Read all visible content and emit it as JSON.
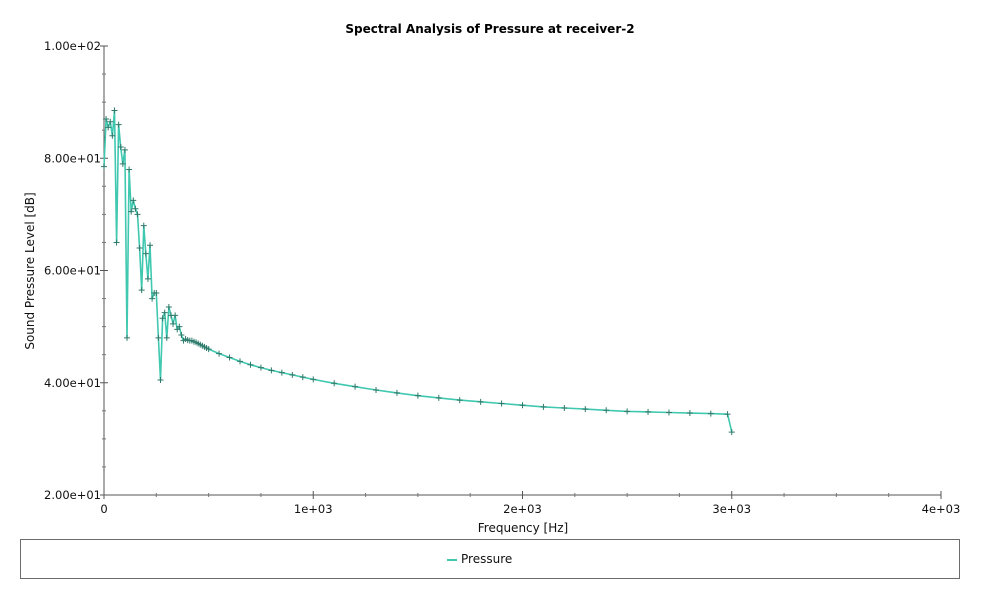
{
  "chart_data": {
    "type": "line",
    "title": "Spectral Analysis of Pressure at receiver-2",
    "xlabel": "Frequency [Hz]",
    "ylabel": "Sound Pressure Level [dB]",
    "xlim": [
      0,
      4000
    ],
    "ylim": [
      20,
      100
    ],
    "x_ticks": [
      0,
      1000,
      2000,
      3000,
      4000
    ],
    "x_tick_labels": [
      "0",
      "1e+03",
      "2e+03",
      "3e+03",
      "4e+03"
    ],
    "y_ticks": [
      20,
      40,
      60,
      80,
      100
    ],
    "y_tick_labels": [
      "2.00e+01",
      "4.00e+01",
      "6.00e+01",
      "8.00e+01",
      "1.00e+02"
    ],
    "grid": false,
    "legend_position": "bottom",
    "series": [
      {
        "name": "Pressure",
        "color": "#40c8b0",
        "marker": "+",
        "sampled": true,
        "x": [
          0,
          10,
          20,
          30,
          40,
          50,
          60,
          70,
          80,
          90,
          100,
          110,
          120,
          130,
          140,
          150,
          160,
          170,
          180,
          190,
          200,
          210,
          220,
          230,
          240,
          250,
          260,
          270,
          280,
          290,
          300,
          310,
          320,
          330,
          340,
          350,
          360,
          370,
          380,
          390,
          400,
          410,
          420,
          430,
          440,
          450,
          460,
          470,
          480,
          490,
          500,
          550,
          600,
          650,
          700,
          750,
          800,
          850,
          900,
          950,
          1000,
          1100,
          1200,
          1300,
          1400,
          1500,
          1600,
          1700,
          1800,
          1900,
          2000,
          2100,
          2200,
          2300,
          2400,
          2500,
          2600,
          2700,
          2800,
          2900,
          2980,
          3000
        ],
        "y": [
          78.5,
          87,
          85.5,
          86.5,
          84,
          88.5,
          65,
          86,
          82,
          79,
          81.5,
          48,
          78,
          70.5,
          72.5,
          71,
          70,
          64,
          56.5,
          68,
          63,
          58.5,
          64.5,
          55,
          56,
          56,
          48,
          40.5,
          51.5,
          52.5,
          48,
          53.5,
          52,
          50.5,
          52,
          49.5,
          50,
          48.5,
          47.5,
          47.8,
          47.6,
          47.5,
          47.5,
          47.3,
          47.2,
          47,
          46.8,
          46.6,
          46.4,
          46.2,
          46,
          45.2,
          44.5,
          43.8,
          43.2,
          42.7,
          42.2,
          41.8,
          41.4,
          41,
          40.6,
          39.9,
          39.3,
          38.7,
          38.2,
          37.7,
          37.3,
          36.9,
          36.6,
          36.3,
          36,
          35.7,
          35.5,
          35.3,
          35.1,
          34.9,
          34.8,
          34.7,
          34.6,
          34.5,
          34.4,
          31.2
        ]
      }
    ]
  }
}
